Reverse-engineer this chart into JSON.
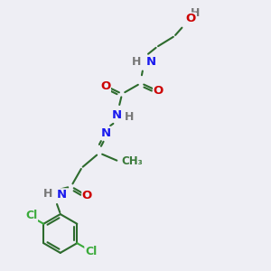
{
  "bg_color": "#eeeef4",
  "bond_color": "#2d6b2d",
  "bond_width": 1.5,
  "atom_colors": {
    "C": "#3a7a3a",
    "H": "#777777",
    "N": "#1a1aee",
    "O": "#cc0000",
    "Cl": "#3aaa3a"
  },
  "font_size": 9.5
}
